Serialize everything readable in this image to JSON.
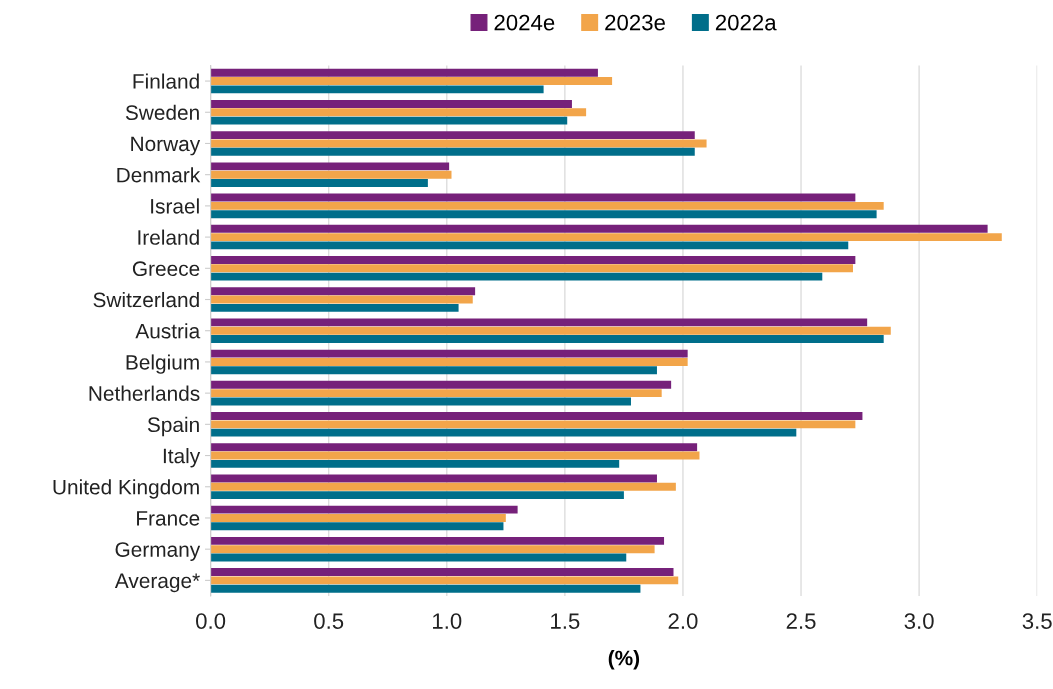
{
  "chart_data": {
    "type": "bar",
    "orientation": "horizontal",
    "xlabel": "(%)",
    "categories": [
      "Finland",
      "Sweden",
      "Norway",
      "Denmark",
      "Israel",
      "Ireland",
      "Greece",
      "Switzerland",
      "Austria",
      "Belgium",
      "Netherlands",
      "Spain",
      "Italy",
      "United Kingdom",
      "France",
      "Germany",
      "Average*"
    ],
    "series": [
      {
        "name": "2024e",
        "color": "#76217a",
        "values": [
          1.64,
          1.53,
          2.05,
          1.01,
          2.73,
          3.29,
          2.73,
          1.12,
          2.78,
          2.02,
          1.95,
          2.76,
          2.06,
          1.89,
          1.3,
          1.92,
          1.96
        ]
      },
      {
        "name": "2023e",
        "color": "#f2a54a",
        "values": [
          1.7,
          1.59,
          2.1,
          1.02,
          2.85,
          3.35,
          2.72,
          1.11,
          2.88,
          2.02,
          1.91,
          2.73,
          2.07,
          1.97,
          1.25,
          1.88,
          1.98
        ]
      },
      {
        "name": "2022a",
        "color": "#006e8a",
        "values": [
          1.41,
          1.51,
          2.05,
          0.92,
          2.82,
          2.7,
          2.59,
          1.05,
          2.85,
          1.89,
          1.78,
          2.48,
          1.73,
          1.75,
          1.24,
          1.76,
          1.82
        ]
      }
    ],
    "xlim": [
      0,
      3.5
    ],
    "xticks": [
      {
        "value": 0,
        "label": "0.0"
      },
      0.5,
      {
        "value": 1,
        "label": "1.0"
      },
      1.5,
      {
        "value": 2,
        "label": "2.0"
      },
      2.5,
      {
        "value": 3,
        "label": "3.0"
      },
      3.5
    ],
    "grid": "x",
    "legend": "top"
  }
}
